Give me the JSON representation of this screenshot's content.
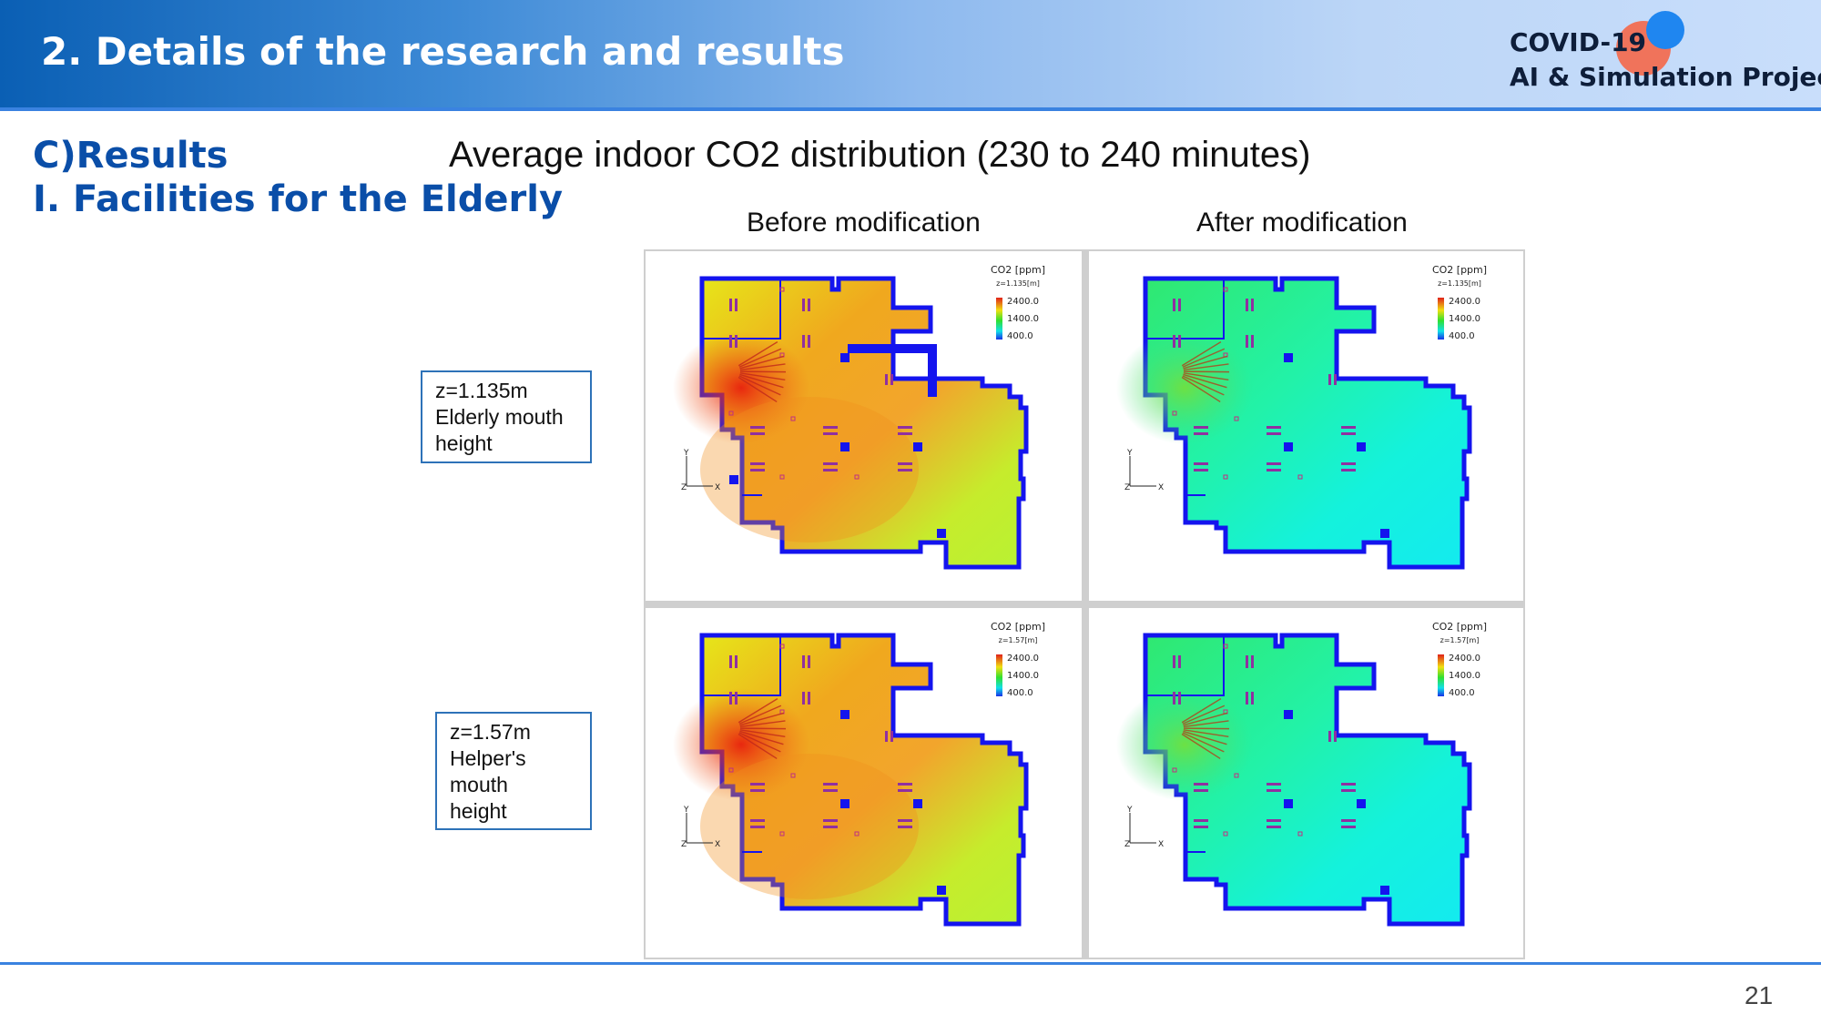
{
  "header": {
    "title": "2. Details of the research and results",
    "logo_line1": "COVID-19",
    "logo_line2": "AI & Simulation Project",
    "logo_colors": {
      "red": "#f0735b",
      "blue": "#1f86f0"
    }
  },
  "section": {
    "letter": "C)Results",
    "subtitle": "I. Facilities for the Elderly"
  },
  "main_title": "Average indoor CO2 distribution (230 to 240 minutes)",
  "columns": {
    "before": "Before modification",
    "after": "After modification"
  },
  "rows": [
    {
      "label": [
        "z=1.135m",
        "Elderly mouth",
        "height"
      ]
    },
    {
      "label": [
        "z=1.57m",
        "Helper's",
        "mouth",
        "height"
      ]
    }
  ],
  "panels": [
    {
      "legend_title": "CO2 [ppm]",
      "z_label": "z=1.135[m]",
      "ticks": [
        "2400.0",
        "1400.0",
        "400.0"
      ],
      "state": "before"
    },
    {
      "legend_title": "CO2 [ppm]",
      "z_label": "z=1.135[m]",
      "ticks": [
        "2400.0",
        "1400.0",
        "400.0"
      ],
      "state": "after"
    },
    {
      "legend_title": "CO2 [ppm]",
      "z_label": "z=1.57[m]",
      "ticks": [
        "2400.0",
        "1400.0",
        "400.0"
      ],
      "state": "before"
    },
    {
      "legend_title": "CO2 [ppm]",
      "z_label": "z=1.57[m]",
      "ticks": [
        "2400.0",
        "1400.0",
        "400.0"
      ],
      "state": "after"
    }
  ],
  "axes": {
    "y": "Y",
    "x": "X",
    "z": "Z"
  },
  "page_number": "21"
}
